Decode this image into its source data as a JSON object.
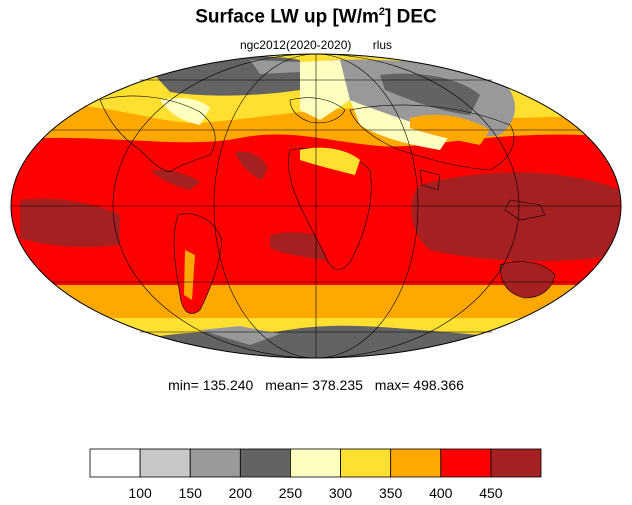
{
  "title": {
    "main": "Surface LW up [W/m",
    "superscript": "2",
    "suffix": "]  DEC"
  },
  "subtitle": {
    "run": "ngc2012(2020-2020)",
    "variable": "rlus"
  },
  "stats": {
    "min": "min= 135.240",
    "mean": "mean= 378.235",
    "max": "max= 498.366"
  },
  "colorbar": {
    "colors": [
      "#ffffff",
      "#c8c8c8",
      "#999999",
      "#636363",
      "#ffffc0",
      "#ffe030",
      "#ffa800",
      "#ff0000",
      "#a52020"
    ],
    "tick_labels": [
      "100",
      "150",
      "200",
      "250",
      "300",
      "350",
      "400",
      "450"
    ]
  },
  "map": {
    "projection": "mollweide",
    "ocean_tropics_color": "#ff0000",
    "warm_pool_color": "#a52020",
    "midlat_color": "#ffa800",
    "highlat_color": "#ffe030",
    "cold_color": "#ffffc0",
    "ice_color": "#636363",
    "grid": true
  }
}
